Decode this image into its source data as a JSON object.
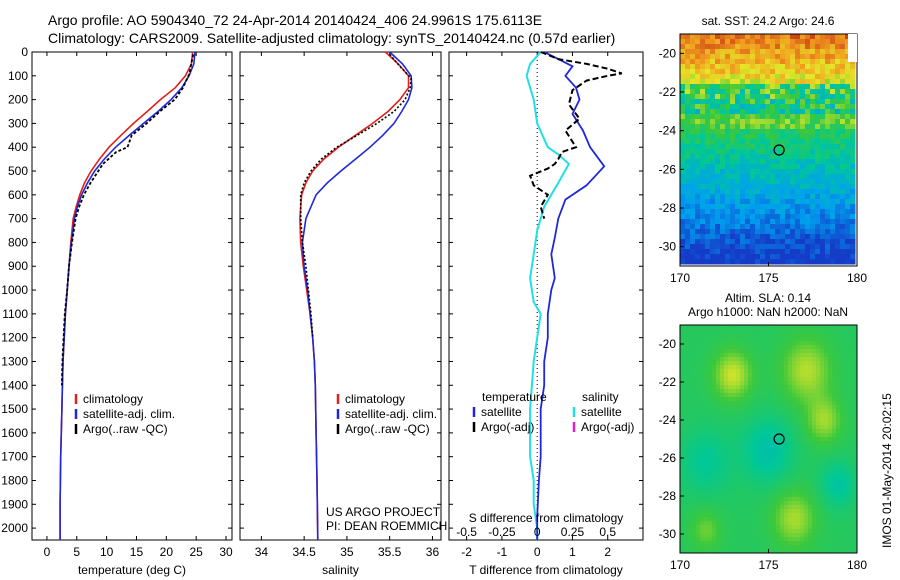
{
  "header": {
    "line1": "Argo profile: AO 5904340_72 24-Apr-2014 20140424_406 24.9961S 175.6113E",
    "line2": "Climatology: CARS2009. Satellite-adjusted climatology: synTS_20140424.nc (0.57d earlier)"
  },
  "stamp": "IMOS 01-May-2014 20:02:15",
  "colors": {
    "climatology": "#e0201a",
    "satellite": "#1f28d8",
    "argo": "#000000",
    "salinity_satellite": "#20e0e6",
    "salinity_argo": "#e020c0"
  },
  "chart_data": [
    {
      "type": "line",
      "id": "temperature",
      "xlabel": "temperature (deg C)",
      "xlim": [
        -2.5,
        31
      ],
      "xticks": [
        0,
        5,
        10,
        15,
        20,
        25,
        30
      ],
      "ylim": [
        2050,
        0
      ],
      "yticks": [
        0,
        100,
        200,
        300,
        400,
        500,
        600,
        700,
        800,
        900,
        1000,
        1100,
        1200,
        1300,
        1400,
        1500,
        1600,
        1700,
        1800,
        1900,
        2000
      ],
      "legend": [
        "climatology",
        "satellite-adj. clim.",
        "Argo(..raw -QC)"
      ],
      "series": [
        {
          "name": "climatology",
          "x": [
            24.4,
            24.2,
            23.2,
            21.5,
            19.0,
            16.8,
            14.5,
            12.4,
            10.4,
            8.8,
            7.4,
            6.3,
            5.5,
            4.9,
            4.4,
            4.0,
            3.7,
            3.4,
            3.1,
            2.9,
            2.7,
            2.6,
            2.5,
            2.3,
            2.2,
            2.2
          ],
          "y": [
            0,
            50,
            100,
            150,
            200,
            250,
            300,
            350,
            400,
            450,
            500,
            550,
            600,
            650,
            700,
            800,
            900,
            1000,
            1100,
            1200,
            1300,
            1400,
            1500,
            1700,
            1900,
            2050
          ]
        },
        {
          "name": "satellite-adj. clim.",
          "x": [
            24.8,
            24.6,
            23.8,
            22.6,
            20.8,
            18.6,
            16.2,
            13.8,
            11.5,
            9.6,
            8.0,
            6.8,
            5.8,
            5.1,
            4.6,
            4.1,
            3.7,
            3.4,
            3.1,
            2.9,
            2.7,
            2.6,
            2.5,
            2.3,
            2.2,
            2.2
          ],
          "y": [
            0,
            50,
            100,
            150,
            200,
            250,
            300,
            350,
            400,
            450,
            500,
            550,
            600,
            650,
            700,
            800,
            900,
            1000,
            1100,
            1200,
            1300,
            1400,
            1500,
            1700,
            1900,
            2050
          ]
        },
        {
          "name": "Argo(..raw -QC)",
          "x": [
            24.5,
            24.1,
            23.9,
            22.8,
            21.4,
            18.9,
            16.7,
            14.2,
            13.5,
            11.6,
            9.4,
            8.6,
            7.3,
            6.2,
            5.4,
            4.8,
            4.2,
            3.7,
            3.4,
            3.0,
            2.8,
            2.6,
            2.5
          ],
          "y": [
            10,
            60,
            90,
            150,
            200,
            250,
            300,
            350,
            400,
            420,
            470,
            500,
            550,
            600,
            650,
            700,
            800,
            900,
            1000,
            1100,
            1200,
            1300,
            1400
          ]
        }
      ]
    },
    {
      "type": "line",
      "id": "salinity",
      "xlabel": "salinity",
      "xlim": [
        33.75,
        36.1
      ],
      "xticks": [
        34,
        34.5,
        35,
        35.5,
        36
      ],
      "ylim": [
        2050,
        0
      ],
      "legend": [
        "climatology",
        "satellite-adj. clim.",
        "Argo(..raw -QC)"
      ],
      "annotation": [
        "US ARGO PROJECT",
        "PI: DEAN ROEMMICH"
      ],
      "series": [
        {
          "name": "climatology",
          "x": [
            35.45,
            35.6,
            35.72,
            35.72,
            35.62,
            35.48,
            35.3,
            35.1,
            34.9,
            34.73,
            34.6,
            34.52,
            34.47,
            34.45,
            34.46,
            34.49,
            34.53,
            34.57,
            34.6,
            34.62,
            34.63,
            34.64,
            34.65,
            34.66
          ],
          "y": [
            0,
            50,
            100,
            150,
            200,
            250,
            300,
            350,
            400,
            450,
            500,
            550,
            600,
            700,
            800,
            900,
            1000,
            1100,
            1200,
            1300,
            1400,
            1600,
            1800,
            2050
          ]
        },
        {
          "name": "satellite-adj. clim.",
          "x": [
            35.5,
            35.65,
            35.75,
            35.76,
            35.72,
            35.64,
            35.55,
            35.42,
            35.27,
            35.1,
            34.93,
            34.77,
            34.64,
            34.52,
            34.48,
            34.5,
            34.54,
            34.57,
            34.6,
            34.62,
            34.63,
            34.64,
            34.65,
            34.66
          ],
          "y": [
            0,
            50,
            100,
            150,
            200,
            250,
            300,
            350,
            400,
            450,
            500,
            550,
            600,
            700,
            800,
            900,
            1000,
            1100,
            1200,
            1300,
            1400,
            1600,
            1800,
            2050
          ]
        },
        {
          "name": "Argo(..raw -QC)",
          "x": [
            35.5,
            35.62,
            35.75,
            35.74,
            35.68,
            35.55,
            35.35,
            35.12,
            34.88,
            34.7,
            34.58,
            34.5,
            34.46,
            34.46,
            34.48,
            34.52,
            34.55,
            34.58,
            34.6
          ],
          "y": [
            10,
            60,
            110,
            150,
            200,
            250,
            300,
            350,
            400,
            450,
            500,
            550,
            600,
            700,
            800,
            900,
            1000,
            1100,
            1200
          ]
        }
      ]
    },
    {
      "type": "line",
      "id": "differences",
      "xlabel": "T difference from climatology",
      "xlabel2": "S difference from climatology",
      "xlim": [
        -2.5,
        3
      ],
      "xticks": [
        -2,
        -1,
        0,
        1,
        2
      ],
      "xticks2_labels": [
        "-0.5",
        "-0.25",
        "0",
        "0.25",
        "0.5"
      ],
      "xticks2_pos": [
        -2,
        -1,
        0,
        1,
        2
      ],
      "ylim": [
        2050,
        0
      ],
      "legend": {
        "temperature_heading": "temperature",
        "salinity_heading": "salinity",
        "temperature": [
          "satellite",
          "Argo(-adj)"
        ],
        "salinity": [
          "satellite",
          "Argo(-adj)"
        ]
      },
      "series": [
        {
          "name": "T satellite",
          "x": [
            0.2,
            0.6,
            1.0,
            0.8,
            1.1,
            1.2,
            1.0,
            1.3,
            1.5,
            1.9,
            1.4,
            0.8,
            0.6,
            0.5,
            0.4,
            0.5,
            0.4,
            0.3,
            0.3,
            0.2,
            0.2,
            0.1,
            0.1,
            0.1,
            0.05,
            0.0,
            0.0
          ],
          "y": [
            0,
            30,
            60,
            100,
            150,
            200,
            260,
            330,
            400,
            480,
            560,
            620,
            700,
            780,
            850,
            950,
            1000,
            1100,
            1200,
            1300,
            1400,
            1500,
            1600,
            1700,
            1800,
            1950,
            2050
          ]
        },
        {
          "name": "T Argo(-adj)",
          "x": [
            0.1,
            0.6,
            1.4,
            2.0,
            2.4,
            2.0,
            1.4,
            1.0,
            0.9,
            1.2,
            0.8,
            1.1,
            0.7,
            0.6,
            0.5,
            0.3,
            -0.2,
            -0.1,
            0.3,
            0.1,
            0.2
          ],
          "y": [
            0,
            30,
            50,
            70,
            90,
            100,
            120,
            160,
            220,
            280,
            330,
            400,
            420,
            450,
            470,
            490,
            520,
            560,
            600,
            650,
            700
          ]
        },
        {
          "name": "S satellite",
          "x": [
            0.1,
            -0.2,
            -0.3,
            -0.1,
            0.0,
            0.3,
            0.6,
            0.9,
            0.6,
            0.2,
            0.0,
            -0.1,
            -0.2,
            -0.1,
            0.1,
            -0.1,
            -0.2,
            -0.2,
            -0.1,
            -0.1,
            0.0,
            0.0
          ],
          "y": [
            0,
            50,
            100,
            200,
            300,
            400,
            430,
            470,
            550,
            650,
            750,
            850,
            950,
            1050,
            1100,
            1300,
            1500,
            1700,
            1800,
            1900,
            2000,
            2050
          ]
        }
      ]
    },
    {
      "type": "heatmap",
      "id": "sst_map",
      "title": "sat. SST: 24.2 Argo: 24.6",
      "xlim": [
        170,
        180
      ],
      "ylim": [
        -31,
        -19
      ],
      "xticks": [
        170,
        175,
        180
      ],
      "yticks": [
        -30,
        -28,
        -26,
        -24,
        -22,
        -20
      ],
      "marker": [
        175.6,
        -25.0
      ]
    },
    {
      "type": "heatmap",
      "id": "sla_map",
      "title": [
        "Altim. SLA: 0.14",
        "Argo h1000: NaN h2000: NaN"
      ],
      "xlim": [
        170,
        180
      ],
      "ylim": [
        -31,
        -19
      ],
      "xticks": [
        170,
        175,
        180
      ],
      "yticks": [
        -30,
        -28,
        -26,
        -24,
        -22,
        -20
      ],
      "marker": [
        175.6,
        -25.0
      ]
    }
  ]
}
